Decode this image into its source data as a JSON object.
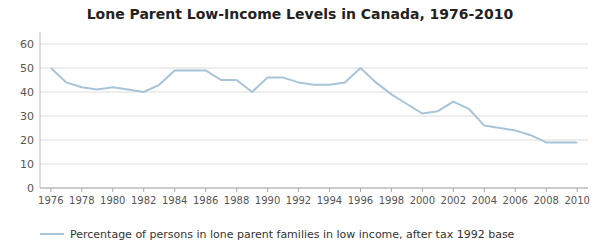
{
  "chart_data": {
    "type": "line",
    "title": "Lone Parent Low-Income Levels in Canada, 1976-2010",
    "x": [
      1976,
      1977,
      1978,
      1979,
      1980,
      1981,
      1982,
      1983,
      1984,
      1985,
      1986,
      1987,
      1988,
      1989,
      1990,
      1991,
      1992,
      1993,
      1994,
      1995,
      1996,
      1997,
      1998,
      1999,
      2000,
      2001,
      2002,
      2003,
      2004,
      2005,
      2006,
      2007,
      2008,
      2009,
      2010
    ],
    "series": [
      {
        "name": "Percentage of persons in lone parent families in low income, after tax 1992 base",
        "color": "#a8c4d8",
        "values": [
          50,
          44,
          42,
          41,
          42,
          41,
          40,
          43,
          49,
          49,
          49,
          45,
          45,
          40,
          46,
          46,
          44,
          43,
          43,
          44,
          50,
          44,
          39,
          35,
          31,
          32,
          36,
          33,
          26,
          25,
          24,
          22,
          19,
          19,
          19
        ]
      }
    ],
    "xlim": [
      1975.3,
      2010.7
    ],
    "xticks": [
      1976,
      1978,
      1980,
      1982,
      1984,
      1986,
      1988,
      1990,
      1992,
      1994,
      1996,
      1998,
      2000,
      2002,
      2004,
      2006,
      2008,
      2010
    ],
    "ylim": [
      0,
      65
    ],
    "yticks": [
      0,
      10,
      20,
      30,
      40,
      50,
      60
    ],
    "grid": true,
    "legend": "bottom"
  }
}
